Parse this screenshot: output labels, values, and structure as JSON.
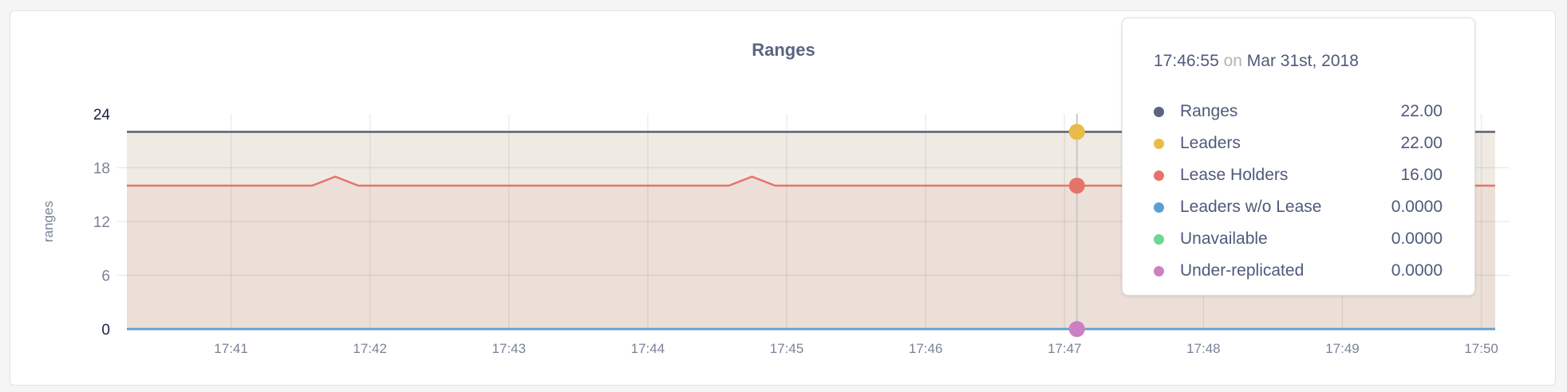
{
  "chart_data": {
    "type": "area",
    "title": "Ranges",
    "ylabel": "ranges",
    "xlabel": "",
    "ylim": [
      0,
      24
    ],
    "yticks": [
      "0",
      "6",
      "12",
      "18",
      "24"
    ],
    "xlim": [
      "17:40:15",
      "17:50:06"
    ],
    "xticks": [
      "17:41",
      "17:42",
      "17:43",
      "17:44",
      "17:45",
      "17:46",
      "17:47",
      "17:48",
      "17:49",
      "17:50"
    ],
    "grid": true,
    "series": [
      {
        "name": "Ranges",
        "color": "#5b6480",
        "points": [
          [
            "17:40:15",
            22
          ],
          [
            "17:50:06",
            22
          ]
        ]
      },
      {
        "name": "Leaders",
        "color": "#e9bb48",
        "fill": "#efebe3",
        "points": [
          [
            "17:40:15",
            22
          ],
          [
            "17:50:06",
            22
          ]
        ]
      },
      {
        "name": "Lease Holders",
        "color": "#e6736a",
        "fill": "#ecdfd8",
        "points": [
          [
            "17:40:15",
            16
          ],
          [
            "17:41:35",
            16
          ],
          [
            "17:41:45",
            17
          ],
          [
            "17:41:55",
            16
          ],
          [
            "17:44:35",
            16
          ],
          [
            "17:44:45",
            17
          ],
          [
            "17:44:55",
            16
          ],
          [
            "17:50:06",
            16
          ]
        ]
      },
      {
        "name": "Leaders w/o Lease",
        "color": "#5aa0d6",
        "points": [
          [
            "17:40:15",
            0
          ],
          [
            "17:50:06",
            0
          ]
        ]
      },
      {
        "name": "Unavailable",
        "color": "#70d690",
        "points": [
          [
            "17:40:15",
            0
          ],
          [
            "17:50:06",
            0
          ]
        ]
      },
      {
        "name": "Under-replicated",
        "color": "#cc80c4",
        "points": [
          [
            "17:40:15",
            0
          ],
          [
            "17:50:06",
            0
          ]
        ]
      }
    ]
  },
  "tooltip": {
    "time": "17:46:55",
    "on": "on",
    "date": "Mar 31st, 2018",
    "rows": [
      {
        "label": "Ranges",
        "value": "22.00",
        "color": "#5b6480"
      },
      {
        "label": "Leaders",
        "value": "22.00",
        "color": "#e9bb48"
      },
      {
        "label": "Lease Holders",
        "value": "16.00",
        "color": "#e6736a"
      },
      {
        "label": "Leaders w/o Lease",
        "value": "0.0000",
        "color": "#5aa0d6"
      },
      {
        "label": "Unavailable",
        "value": "0.0000",
        "color": "#70d690"
      },
      {
        "label": "Under-replicated",
        "value": "0.0000",
        "color": "#cc80c4"
      }
    ]
  }
}
